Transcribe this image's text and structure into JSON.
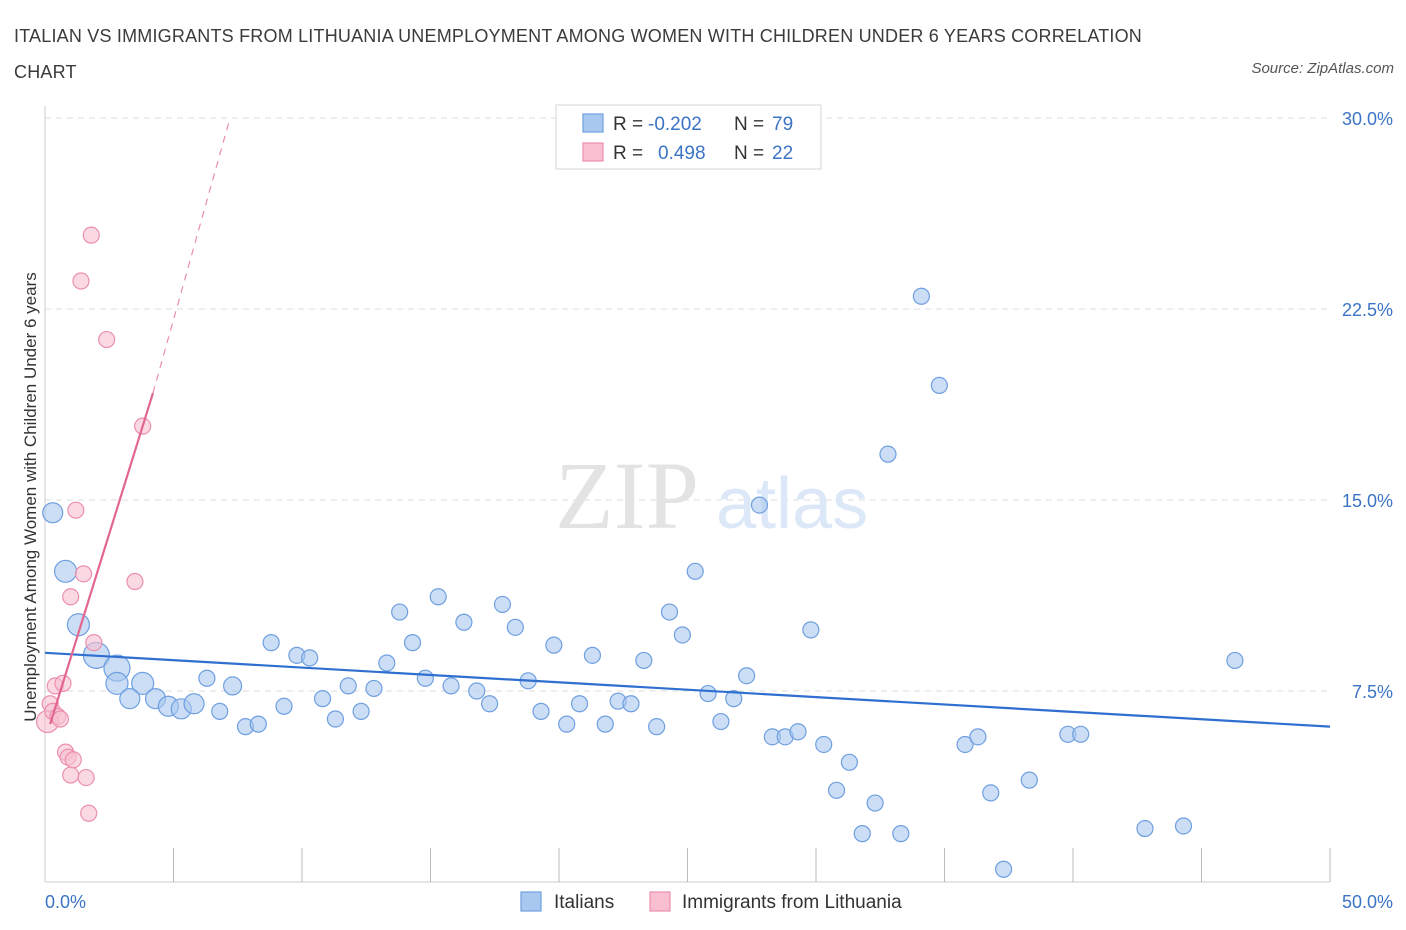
{
  "title": "ITALIAN VS IMMIGRANTS FROM LITHUANIA UNEMPLOYMENT AMONG WOMEN WITH CHILDREN UNDER 6 YEARS CORRELATION CHART",
  "source": "Source: ZipAtlas.com",
  "watermark": {
    "zip": "ZIP",
    "atlas": "atlas"
  },
  "colors": {
    "italians_fill": "#a9c8f0",
    "italians_stroke": "#6f9fe0",
    "italians_line": "#2f6fd0",
    "lithuania_fill": "#f7bfd0",
    "lithuania_stroke": "#ec8fad",
    "lithuania_line": "#e26690",
    "grid": "#dddddd",
    "axis_text": "#3b74c5"
  },
  "legend_top": {
    "rows": [
      {
        "r_label": "R =",
        "r_value": "-0.202",
        "n_label": "N =",
        "n_value": "79"
      },
      {
        "r_label": "R =",
        "r_value": "0.498",
        "n_label": "N =",
        "n_value": "22"
      }
    ]
  },
  "chart_data": {
    "type": "scatter",
    "title": "ITALIAN VS IMMIGRANTS FROM LITHUANIA UNEMPLOYMENT AMONG WOMEN WITH CHILDREN UNDER 6 YEARS CORRELATION CHART",
    "xlabel": "",
    "ylabel": "Unemployment Among Women with Children Under 6 years",
    "xlim": [
      0,
      50
    ],
    "ylim": [
      0,
      30
    ],
    "x_tick_labels": [
      "0.0%",
      "50.0%"
    ],
    "y_ticks": [
      7.5,
      15,
      22.5,
      30
    ],
    "y_tick_labels": [
      "7.5%",
      "15.0%",
      "22.5%",
      "30.0%"
    ],
    "grid": true,
    "legend_position": "bottom-center",
    "series": [
      {
        "name": "Italians",
        "r": -0.202,
        "n": 79,
        "trend": {
          "x": [
            0,
            50
          ],
          "y": [
            9.0,
            6.1
          ]
        },
        "points": [
          [
            0.3,
            14.5,
            10
          ],
          [
            0.8,
            12.2,
            11
          ],
          [
            1.3,
            10.1,
            11
          ],
          [
            2.0,
            8.9,
            13
          ],
          [
            2.8,
            8.4,
            13
          ],
          [
            2.8,
            7.8,
            11
          ],
          [
            3.8,
            7.8,
            11
          ],
          [
            3.3,
            7.2,
            10
          ],
          [
            4.3,
            7.2,
            10
          ],
          [
            4.8,
            6.9,
            10
          ],
          [
            5.3,
            6.8,
            10
          ],
          [
            5.8,
            7.0,
            10
          ],
          [
            6.3,
            8.0,
            8
          ],
          [
            6.8,
            6.7,
            8
          ],
          [
            7.3,
            7.7,
            9
          ],
          [
            7.8,
            6.1,
            8
          ],
          [
            8.3,
            6.2,
            8
          ],
          [
            8.8,
            9.4,
            8
          ],
          [
            9.3,
            6.9,
            8
          ],
          [
            9.8,
            8.9,
            8
          ],
          [
            10.3,
            8.8,
            8
          ],
          [
            10.8,
            7.2,
            8
          ],
          [
            11.3,
            6.4,
            8
          ],
          [
            11.8,
            7.7,
            8
          ],
          [
            12.3,
            6.7,
            8
          ],
          [
            12.8,
            7.6,
            8
          ],
          [
            13.3,
            8.6,
            8
          ],
          [
            13.8,
            10.6,
            8
          ],
          [
            14.3,
            9.4,
            8
          ],
          [
            14.8,
            8.0,
            8
          ],
          [
            15.3,
            11.2,
            8
          ],
          [
            15.8,
            7.7,
            8
          ],
          [
            16.3,
            10.2,
            8
          ],
          [
            16.8,
            7.5,
            8
          ],
          [
            17.3,
            7.0,
            8
          ],
          [
            17.8,
            10.9,
            8
          ],
          [
            18.3,
            10.0,
            8
          ],
          [
            18.8,
            7.9,
            8
          ],
          [
            19.3,
            6.7,
            8
          ],
          [
            19.8,
            9.3,
            8
          ],
          [
            20.3,
            6.2,
            8
          ],
          [
            20.8,
            7.0,
            8
          ],
          [
            21.3,
            8.9,
            8
          ],
          [
            21.8,
            6.2,
            8
          ],
          [
            22.3,
            7.1,
            8
          ],
          [
            22.8,
            7.0,
            8
          ],
          [
            23.3,
            8.7,
            8
          ],
          [
            23.8,
            6.1,
            8
          ],
          [
            24.3,
            10.6,
            8
          ],
          [
            24.8,
            9.7,
            8
          ],
          [
            25.3,
            12.2,
            8
          ],
          [
            25.8,
            7.4,
            8
          ],
          [
            26.3,
            6.3,
            8
          ],
          [
            26.8,
            7.2,
            8
          ],
          [
            27.3,
            8.1,
            8
          ],
          [
            27.8,
            14.8,
            8
          ],
          [
            28.3,
            5.7,
            8
          ],
          [
            28.8,
            5.7,
            8
          ],
          [
            29.3,
            5.9,
            8
          ],
          [
            29.8,
            9.9,
            8
          ],
          [
            30.3,
            5.4,
            8
          ],
          [
            30.8,
            3.6,
            8
          ],
          [
            31.3,
            4.7,
            8
          ],
          [
            31.8,
            1.9,
            8
          ],
          [
            32.3,
            3.1,
            8
          ],
          [
            32.8,
            16.8,
            8
          ],
          [
            33.3,
            1.9,
            8
          ],
          [
            34.1,
            23.0,
            8
          ],
          [
            34.8,
            19.5,
            8
          ],
          [
            35.8,
            5.4,
            8
          ],
          [
            36.3,
            5.7,
            8
          ],
          [
            36.8,
            3.5,
            8
          ],
          [
            37.3,
            0.5,
            8
          ],
          [
            38.3,
            4.0,
            8
          ],
          [
            39.8,
            5.8,
            8
          ],
          [
            40.3,
            5.8,
            8
          ],
          [
            42.8,
            2.1,
            8
          ],
          [
            44.3,
            2.2,
            8
          ],
          [
            46.3,
            8.7,
            8
          ]
        ]
      },
      {
        "name": "Immigrants from Lithuania",
        "r": 0.498,
        "n": 22,
        "trend": {
          "x": [
            0.2,
            4.2
          ],
          "y": [
            6.2,
            19.2
          ]
        },
        "trend_extension": {
          "x": [
            4.2,
            7.2
          ],
          "y": [
            19.2,
            30.0
          ]
        },
        "points": [
          [
            0.1,
            6.3,
            11
          ],
          [
            0.2,
            7.0,
            8
          ],
          [
            0.3,
            6.7,
            8
          ],
          [
            0.4,
            7.7,
            8
          ],
          [
            0.5,
            6.5,
            8
          ],
          [
            0.6,
            6.4,
            8
          ],
          [
            0.7,
            7.8,
            8
          ],
          [
            0.8,
            5.1,
            8
          ],
          [
            0.9,
            4.9,
            8
          ],
          [
            1.0,
            11.2,
            8
          ],
          [
            1.0,
            4.2,
            8
          ],
          [
            1.1,
            4.8,
            8
          ],
          [
            1.2,
            14.6,
            8
          ],
          [
            1.4,
            23.6,
            8
          ],
          [
            1.5,
            12.1,
            8
          ],
          [
            1.6,
            4.1,
            8
          ],
          [
            1.7,
            2.7,
            8
          ],
          [
            1.8,
            25.4,
            8
          ],
          [
            1.9,
            9.4,
            8
          ],
          [
            2.4,
            21.3,
            8
          ],
          [
            3.5,
            11.8,
            8
          ],
          [
            3.8,
            17.9,
            8
          ]
        ]
      }
    ]
  }
}
